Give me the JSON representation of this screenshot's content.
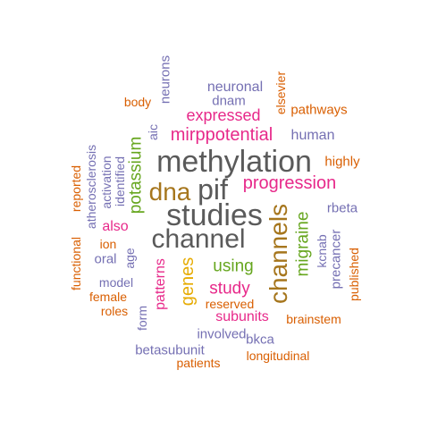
{
  "colors": {
    "orange": "#d95f02",
    "purple": "#7570b3",
    "magenta": "#e7298a",
    "green": "#66a61e",
    "gold": "#e6ab02",
    "brown": "#a6761d",
    "gray": "#666666",
    "teal": "#1b9e77"
  },
  "words": {
    "methylation": "methylation",
    "studies": "studies",
    "channel": "channel",
    "pif": "pif",
    "dna": "dna",
    "channels": "channels",
    "progression": "progression",
    "potassium": "potassium",
    "genes": "genes",
    "migraine": "migraine",
    "using": "using",
    "study": "study",
    "mirppotential": "mirppotential",
    "expressed": "expressed",
    "neuronal": "neuronal",
    "dnam": "dnam",
    "human": "human",
    "pathways": "pathways",
    "elsevier": "elsevier",
    "body": "body",
    "neurons": "neurons",
    "aic": "aic",
    "highly": "highly",
    "rbeta": "rbeta",
    "kcnab": "kcnab",
    "precancer": "precancer",
    "published": "published",
    "brainstem": "brainstem",
    "subunits": "subunits",
    "reserved": "reserved",
    "patterns": "patterns",
    "form": "form",
    "involved": "involved",
    "bkca": "bkca",
    "betasubunit": "betasubunit",
    "patients": "patients",
    "longitudinal": "longitudinal",
    "model": "model",
    "female": "female",
    "roles": "roles",
    "age": "age",
    "oral": "oral",
    "ion": "ion",
    "also": "also",
    "functional": "functional",
    "reported": "reported",
    "atherosclerosis": "atherosclerosis",
    "activation": "activation",
    "identified": "identified"
  }
}
